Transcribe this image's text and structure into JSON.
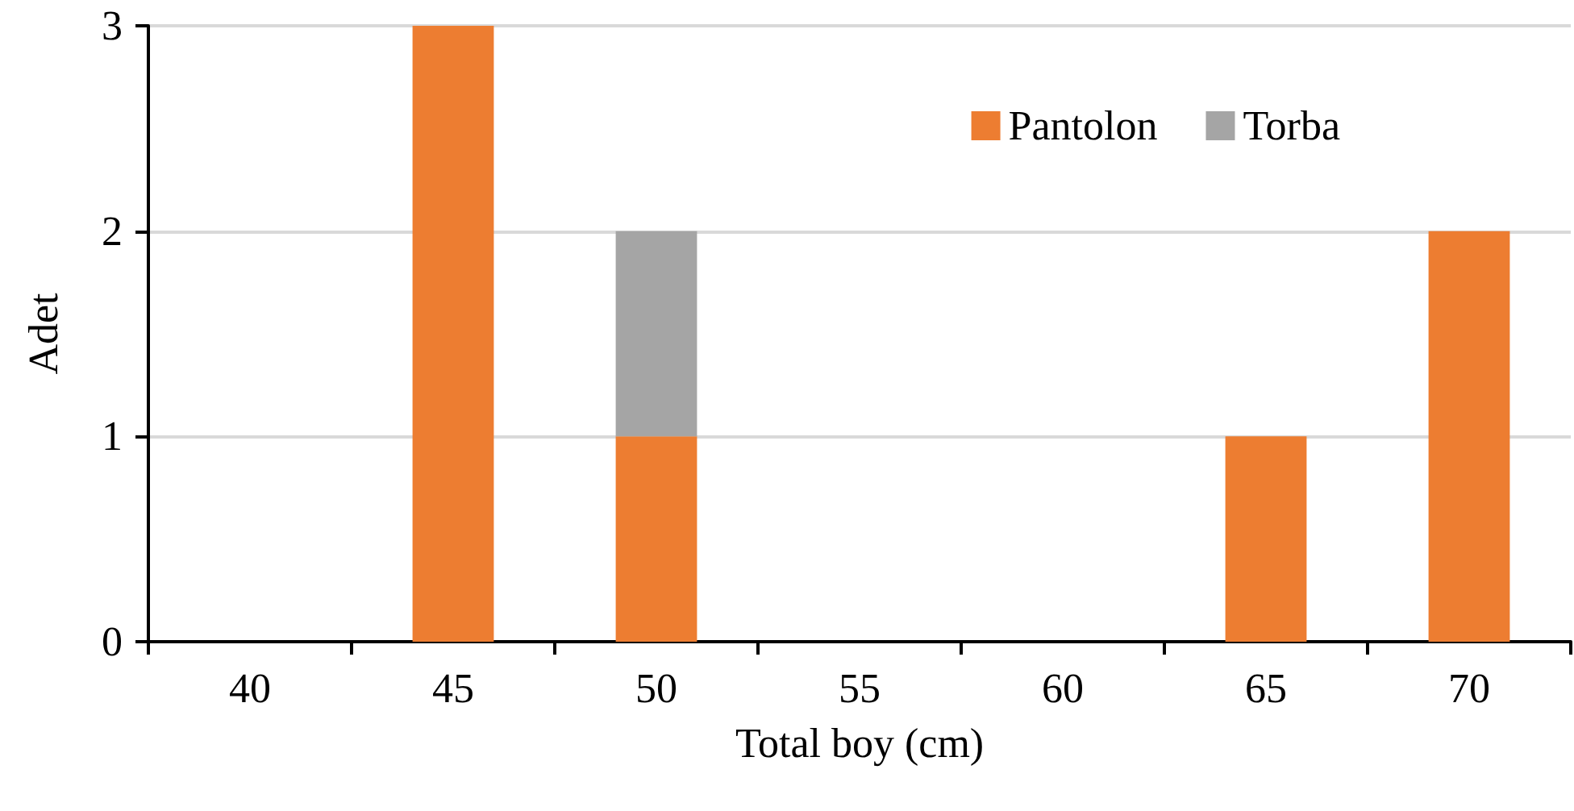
{
  "chart_data": {
    "type": "bar",
    "stacked": true,
    "xlabel": "Total boy (cm)",
    "ylabel": "Adet",
    "categories": [
      "40",
      "45",
      "50",
      "55",
      "60",
      "65",
      "70"
    ],
    "series": [
      {
        "name": "Pantolon",
        "color": "#ed7d31",
        "values": [
          0,
          3,
          1,
          0,
          0,
          1,
          2
        ]
      },
      {
        "name": "Torba",
        "color": "#a5a5a5",
        "values": [
          0,
          0,
          1,
          0,
          0,
          0,
          0
        ]
      }
    ],
    "ylim": [
      0,
      3
    ],
    "yticks": [
      0,
      1,
      2,
      3
    ],
    "grid": "y",
    "legend": "top right"
  }
}
